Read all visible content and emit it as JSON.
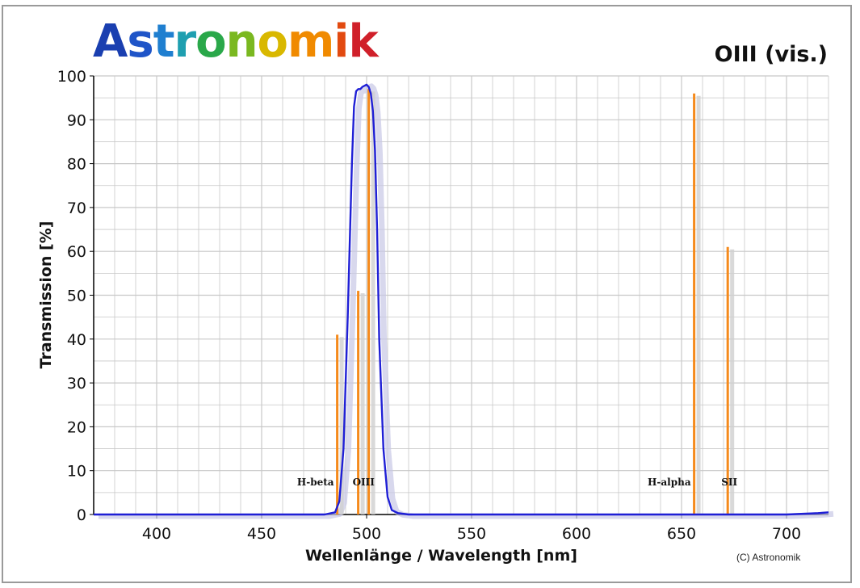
{
  "logo": {
    "letters": [
      "A",
      "s",
      "t",
      "r",
      "o",
      "n",
      "o",
      "m",
      "i",
      "k"
    ],
    "colors": [
      "#1a3fb0",
      "#1f55c8",
      "#1f7fd0",
      "#1f9fb0",
      "#2aa84a",
      "#7ab820",
      "#d9b800",
      "#f08a00",
      "#e24a10",
      "#d0202a"
    ]
  },
  "title": "OIII (vis.)",
  "copyright": "(C) Astronomik",
  "colors": {
    "filter_curve": "#1f1fd6",
    "filter_shadow": "#c8c8e6",
    "emission_lines": "#f58a1c",
    "emission_shadow": "#cfcfcf",
    "grid": "#c8c8c8",
    "axis": "#000000"
  },
  "chart_data": {
    "type": "line",
    "xlabel": "Wellenlänge / Wavelength [nm]",
    "ylabel": "Transmission [%]",
    "xlim": [
      370,
      720
    ],
    "ylim": [
      0,
      100
    ],
    "xticks": [
      400,
      450,
      500,
      550,
      600,
      650,
      700
    ],
    "yticks": [
      0,
      10,
      20,
      30,
      40,
      50,
      60,
      70,
      80,
      90,
      100
    ],
    "grid": true,
    "series": [
      {
        "kind": "line",
        "x": [
          370,
          450,
          480,
          485,
          487,
          489,
          491,
          493,
          494,
          495,
          496,
          497,
          498,
          500,
          501,
          502,
          503,
          504,
          505,
          506,
          508,
          510,
          512,
          515,
          520,
          600,
          700,
          715,
          720
        ],
        "y": [
          0,
          0,
          0,
          0.5,
          3,
          15,
          45,
          80,
          93,
          96.5,
          97,
          97,
          97.5,
          98,
          97.5,
          96,
          92,
          83,
          65,
          40,
          15,
          4,
          1,
          0.3,
          0,
          0,
          0,
          0.3,
          0.5
        ]
      },
      {
        "kind": "emission",
        "lines": [
          {
            "x": 486,
            "y": 41,
            "label": "H-beta"
          },
          {
            "x": 496,
            "y": 51,
            "label": ""
          },
          {
            "x": 501,
            "y": 97,
            "label": "OIII"
          },
          {
            "x": 656,
            "y": 96,
            "label": "H-alpha"
          },
          {
            "x": 672,
            "y": 61,
            "label": "SII"
          }
        ]
      }
    ]
  }
}
